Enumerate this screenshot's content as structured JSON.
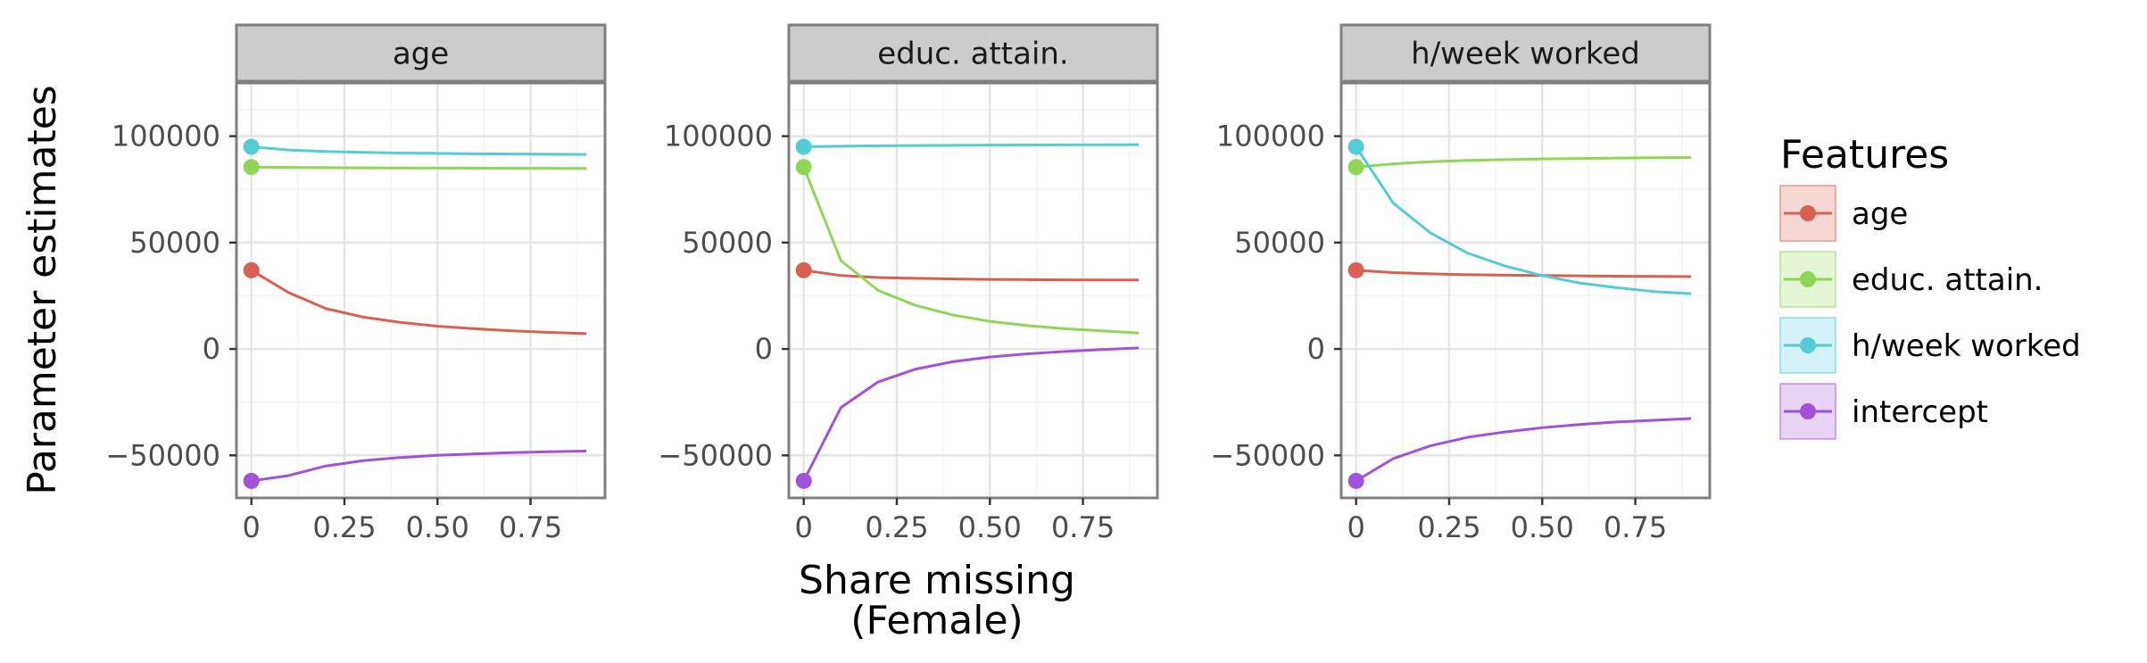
{
  "chart_data": {
    "type": "line",
    "facet_titles": [
      "age",
      "educ. attain.",
      "h/week worked"
    ],
    "x": [
      0,
      0.1,
      0.2,
      0.3,
      0.4,
      0.5,
      0.6,
      0.7,
      0.8,
      0.9
    ],
    "x_tick_labels": [
      "0",
      "0.25",
      "0.50",
      "0.75"
    ],
    "x_ticks": [
      0,
      0.25,
      0.5,
      0.75
    ],
    "y_tick_labels": [
      "100000",
      "50000",
      "0",
      "−50000"
    ],
    "y_ticks": [
      100000,
      50000,
      0,
      -50000
    ],
    "xlim": [
      -0.04,
      0.95
    ],
    "ylim": [
      -70000,
      125000
    ],
    "xlabel_line1": "Share missing",
    "xlabel_line2": "(Female)",
    "ylabel": "Parameter estimates",
    "legend_title": "Features",
    "legend_position": "right",
    "series_names": [
      "age",
      "educ. attain.",
      "h/week worked",
      "intercept"
    ],
    "colors": {
      "age": "#d95f52",
      "educ. attain.": "#8fd656",
      "h/week worked": "#54ccd6",
      "intercept": "#a152d9"
    },
    "panels": [
      {
        "facet": "age",
        "series": [
          {
            "name": "age",
            "values": [
              37000,
              26500,
              19000,
              15000,
              12500,
              10700,
              9500,
              8500,
              7800,
              7200
            ]
          },
          {
            "name": "educ. attain.",
            "values": [
              85500,
              85300,
              85200,
              85100,
              85050,
              85000,
              84950,
              84900,
              84880,
              84850
            ]
          },
          {
            "name": "h/week worked",
            "values": [
              95000,
              93500,
              92800,
              92400,
              92100,
              91900,
              91700,
              91600,
              91500,
              91400
            ]
          },
          {
            "name": "intercept",
            "values": [
              -62000,
              -59500,
              -55000,
              -52500,
              -51000,
              -50000,
              -49300,
              -48700,
              -48300,
              -48000
            ]
          }
        ]
      },
      {
        "facet": "educ. attain.",
        "series": [
          {
            "name": "age",
            "values": [
              37000,
              34500,
              33600,
              33200,
              32900,
              32700,
              32600,
              32500,
              32450,
              32400
            ]
          },
          {
            "name": "educ. attain.",
            "values": [
              85500,
              41500,
              27500,
              20500,
              16000,
              13000,
              11000,
              9500,
              8500,
              7500
            ]
          },
          {
            "name": "h/week worked",
            "values": [
              95000,
              95300,
              95500,
              95600,
              95700,
              95800,
              95850,
              95900,
              95950,
              96000
            ]
          },
          {
            "name": "intercept",
            "values": [
              -62000,
              -27500,
              -15500,
              -9500,
              -6000,
              -3800,
              -2300,
              -1200,
              -300,
              500
            ]
          }
        ]
      },
      {
        "facet": "h/week worked",
        "series": [
          {
            "name": "age",
            "values": [
              37000,
              35900,
              35300,
              34900,
              34700,
              34500,
              34350,
              34200,
              34100,
              34000
            ]
          },
          {
            "name": "educ. attain.",
            "values": [
              85500,
              87000,
              88000,
              88600,
              89000,
              89300,
              89500,
              89700,
              89900,
              90000
            ]
          },
          {
            "name": "h/week worked",
            "values": [
              95000,
              68500,
              54500,
              45000,
              39000,
              34500,
              31000,
              28800,
              27000,
              26000
            ]
          },
          {
            "name": "intercept",
            "values": [
              -62000,
              -51500,
              -45500,
              -41500,
              -39000,
              -37000,
              -35500,
              -34300,
              -33500,
              -32700
            ]
          }
        ]
      }
    ]
  }
}
